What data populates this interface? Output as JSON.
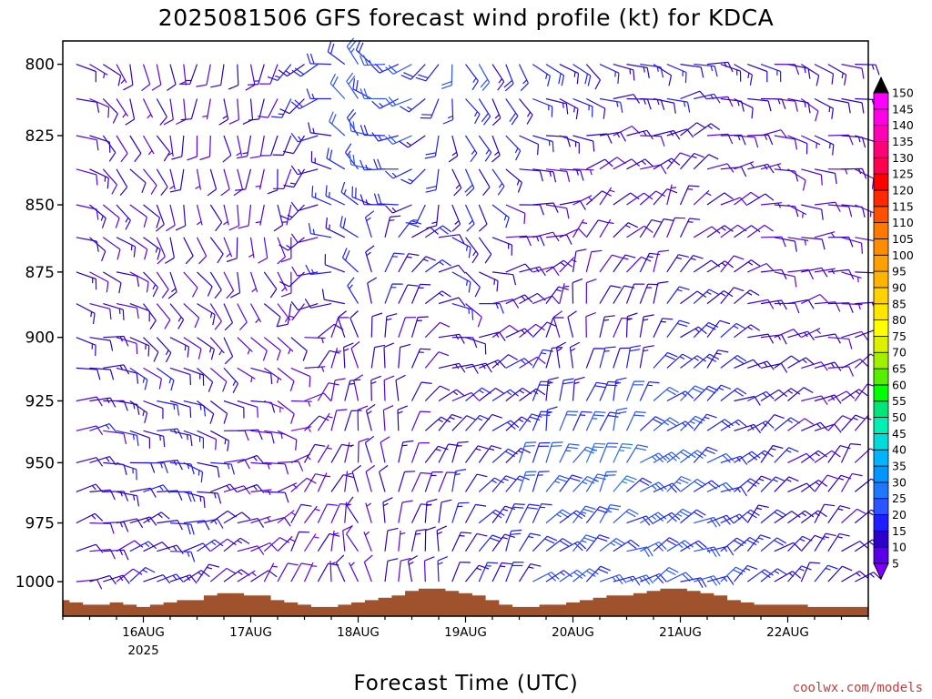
{
  "chart_data": {
    "type": "wind-barb time-height profile",
    "title": "2025081506 GFS forecast wind profile (kt) for KDCA",
    "xlabel": "Forecast Time (UTC)",
    "ylabel": "",
    "credit": "coolwx.com/models",
    "x_ticks": [
      {
        "day": 16,
        "label": "16AUG",
        "sublabel": "2025"
      },
      {
        "day": 17,
        "label": "17AUG",
        "sublabel": ""
      },
      {
        "day": 18,
        "label": "18AUG",
        "sublabel": ""
      },
      {
        "day": 19,
        "label": "19AUG",
        "sublabel": ""
      },
      {
        "day": 20,
        "label": "20AUG",
        "sublabel": ""
      },
      {
        "day": 21,
        "label": "21AUG",
        "sublabel": ""
      },
      {
        "day": 22,
        "label": "22AUG",
        "sublabel": ""
      }
    ],
    "x_range_days": [
      15.25,
      22.75
    ],
    "y_ticks": [
      800,
      825,
      850,
      875,
      900,
      925,
      950,
      975,
      1000
    ],
    "y_range_hpa": [
      792,
      1015
    ],
    "y_scale": "log-pressure, inverted",
    "forecast_start": "2025081506",
    "step_hours": 3,
    "levels_hpa": [
      800,
      812,
      825,
      837,
      850,
      862,
      875,
      887,
      900,
      912,
      925,
      937,
      950,
      962,
      975,
      987,
      1000
    ],
    "direction_keyframes": [
      {
        "hour": 0,
        "dirs_low_to_high": [
          70,
          80,
          90,
          100,
          110
        ]
      },
      {
        "hour": 24,
        "dirs_low_to_high": [
          60,
          100,
          130,
          160,
          180
        ]
      },
      {
        "hour": 48,
        "dirs_low_to_high": [
          40,
          80,
          140,
          180,
          190
        ]
      },
      {
        "hour": 66,
        "dirs_low_to_high": [
          340,
          350,
          330,
          320,
          320
        ]
      },
      {
        "hour": 90,
        "dirs_low_to_high": [
          20,
          40,
          100,
          150,
          160
        ]
      },
      {
        "hour": 114,
        "dirs_low_to_high": [
          60,
          20,
          350,
          60,
          120
        ]
      },
      {
        "hour": 138,
        "dirs_low_to_high": [
          70,
          60,
          40,
          30,
          100
        ]
      },
      {
        "hour": 162,
        "dirs_low_to_high": [
          40,
          50,
          80,
          100,
          110
        ]
      },
      {
        "hour": 180,
        "dirs_low_to_high": [
          50,
          40,
          70,
          100,
          110
        ]
      }
    ],
    "speed_keyframes": [
      {
        "hour": 0,
        "speeds_low_to_high": [
          10,
          11,
          12,
          11,
          10
        ]
      },
      {
        "hour": 24,
        "speeds_low_to_high": [
          14,
          16,
          12,
          10,
          9
        ]
      },
      {
        "hour": 48,
        "speeds_low_to_high": [
          8,
          7,
          7,
          8,
          12
        ]
      },
      {
        "hour": 66,
        "speeds_low_to_high": [
          8,
          9,
          12,
          18,
          22
        ]
      },
      {
        "hour": 90,
        "speeds_low_to_high": [
          14,
          14,
          12,
          14,
          18
        ]
      },
      {
        "hour": 114,
        "speeds_low_to_high": [
          20,
          24,
          10,
          8,
          15
        ]
      },
      {
        "hour": 138,
        "speeds_low_to_high": [
          20,
          22,
          16,
          10,
          14
        ]
      },
      {
        "hour": 162,
        "speeds_low_to_high": [
          15,
          12,
          10,
          8,
          12
        ]
      },
      {
        "hour": 180,
        "speeds_low_to_high": [
          12,
          10,
          10,
          10,
          12
        ]
      }
    ],
    "surface_pressure_hpa": [
      1008,
      1009,
      1010,
      1010,
      1009,
      1010,
      1011,
      1010,
      1009,
      1008,
      1008,
      1006,
      1005,
      1005,
      1006,
      1006,
      1008,
      1009,
      1010,
      1011,
      1011,
      1010,
      1009,
      1008,
      1007,
      1006,
      1004,
      1003,
      1003,
      1004,
      1005,
      1006,
      1008,
      1010,
      1011,
      1011,
      1010,
      1010,
      1009,
      1008,
      1007,
      1006,
      1006,
      1005,
      1004,
      1003,
      1003,
      1004,
      1005,
      1006,
      1008,
      1009,
      1010,
      1010,
      1010,
      1010,
      1011,
      1011,
      1011,
      1011,
      1011
    ],
    "colorbar": {
      "labels": [
        5,
        10,
        15,
        20,
        25,
        30,
        35,
        40,
        45,
        50,
        55,
        60,
        65,
        70,
        75,
        80,
        85,
        90,
        95,
        100,
        105,
        110,
        115,
        120,
        125,
        130,
        135,
        140,
        145,
        150
      ],
      "colors": [
        "#8000ff",
        "#5a00e6",
        "#2d00cc",
        "#1e1eff",
        "#2855ff",
        "#1e78ff",
        "#0096ff",
        "#00b4ff",
        "#00dcdc",
        "#00f0b4",
        "#00e678",
        "#00ff00",
        "#55f000",
        "#a0f000",
        "#dcf000",
        "#ffff00",
        "#ffe600",
        "#ffd200",
        "#ffb400",
        "#ffa000",
        "#ff8c00",
        "#ff7800",
        "#ff5000",
        "#ff2800",
        "#ff0000",
        "#ff0050",
        "#ff0078",
        "#ff00b4",
        "#ff00e6",
        "#ff00ff"
      ],
      "top_color": "#000000",
      "bottom_color": "#8000ff"
    },
    "ground_color": "#a0522d",
    "grid": false,
    "legend": "colorbar-right"
  }
}
